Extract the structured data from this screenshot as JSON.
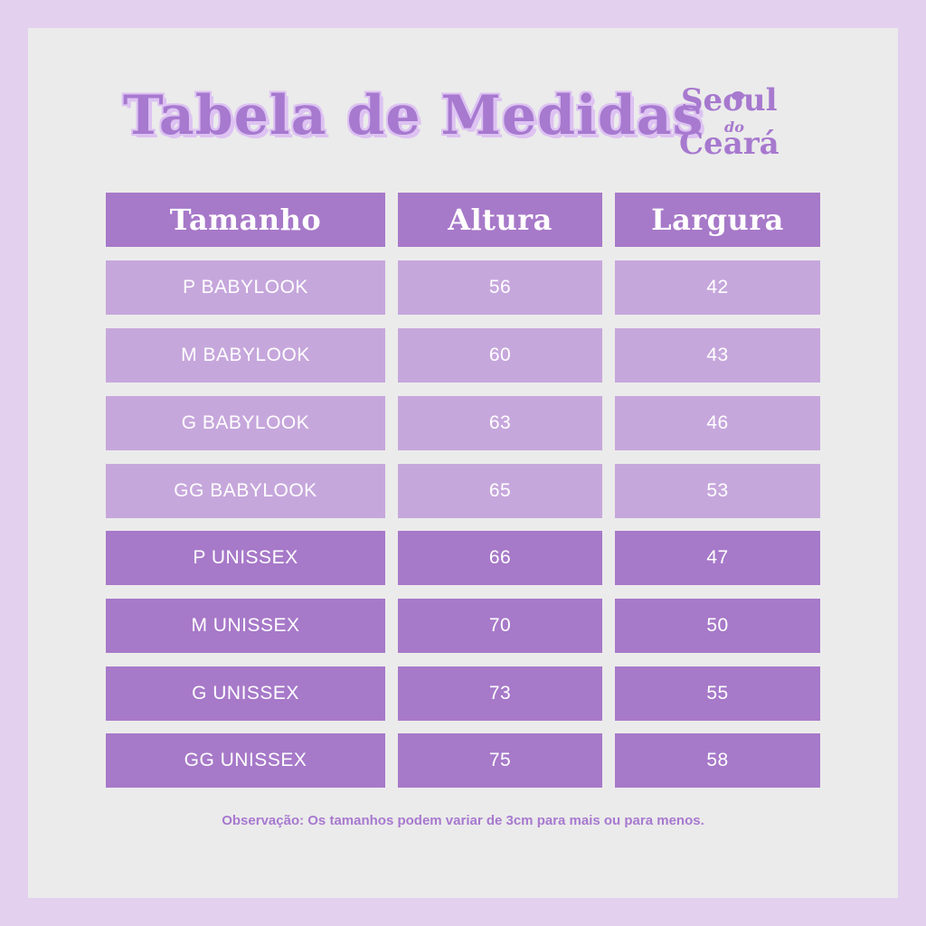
{
  "title": "Tabela de Medidas",
  "logo": {
    "line1": "Seoul",
    "line2": "do",
    "line3": "Ceará"
  },
  "table": {
    "headers": [
      "Tamanho",
      "Altura",
      "Largura"
    ],
    "rows": [
      {
        "size": "P BABYLOOK",
        "altura": "56",
        "largura": "42"
      },
      {
        "size": "M BABYLOOK",
        "altura": "60",
        "largura": "43"
      },
      {
        "size": "G BABYLOOK",
        "altura": "63",
        "largura": "46"
      },
      {
        "size": "GG BABYLOOK",
        "altura": "65",
        "largura": "53"
      },
      {
        "size": "P UNISSEX",
        "altura": "66",
        "largura": "47"
      },
      {
        "size": "M UNISSEX",
        "altura": "70",
        "largura": "50"
      },
      {
        "size": "G UNISSEX",
        "altura": "73",
        "largura": "55"
      },
      {
        "size": "GG UNISSEX",
        "altura": "75",
        "largura": "58"
      }
    ]
  },
  "note": "Observação: Os tamanhos podem variar de 3cm para mais ou para menos.",
  "colors": {
    "background": "#e3cfee",
    "card": "#ebebeb",
    "header": "#a779c9",
    "light_row": "#c6a7dc",
    "dark_row": "#a779c9",
    "accent": "#a779cf"
  }
}
